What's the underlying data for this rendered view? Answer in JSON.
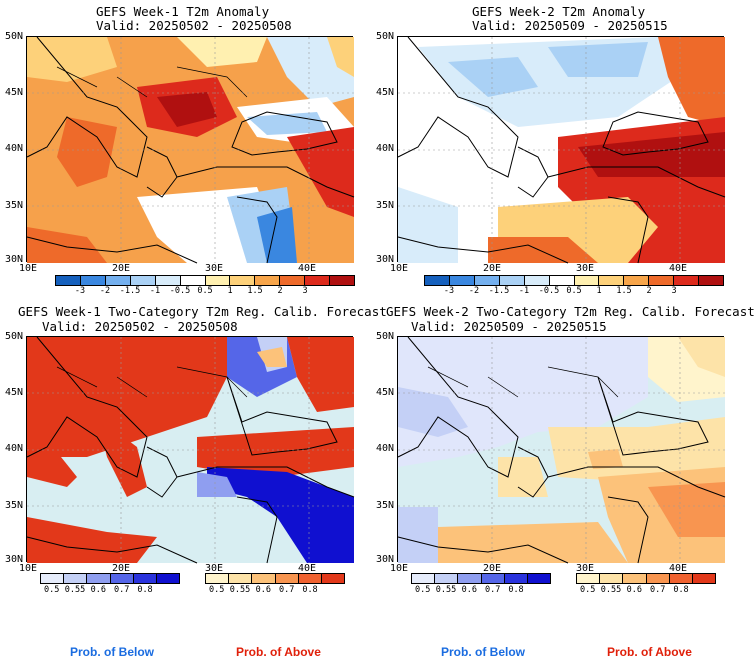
{
  "panels": {
    "tl": {
      "title": "GEFS Week-1 T2m Anomaly",
      "valid": "Valid: 20250502 - 20250508"
    },
    "tr": {
      "title": "GEFS Week-2 T2m Anomaly",
      "valid": "Valid: 20250509 - 20250515"
    },
    "bl": {
      "title": "GEFS Week-1 Two-Category T2m Reg. Calib. Forecast",
      "valid": "Valid: 20250502 - 20250508"
    },
    "br": {
      "title": "GEFS Week-2 Two-Category T2m Reg. Calib. Forecast",
      "valid": "Valid: 20250509 - 20250515"
    }
  },
  "axes": {
    "lat_labels": [
      "50N",
      "45N",
      "40N",
      "35N",
      "30N"
    ],
    "lon_labels": [
      "10E",
      "20E",
      "30E",
      "40E"
    ]
  },
  "anomaly_legend": {
    "labels": [
      "-3",
      "-2",
      "-1.5",
      "-1",
      "-0.5",
      "0.5",
      "1",
      "1.5",
      "2",
      "3"
    ],
    "colors": [
      "#1560bd",
      "#3a87e0",
      "#74b0ef",
      "#aad1f5",
      "#d8ecfa",
      "#ffffff",
      "#fff0b0",
      "#fdd17a",
      "#f7a54a",
      "#ee6a2a",
      "#dd2a1c",
      "#b01010"
    ]
  },
  "prob_legend": {
    "below_labels": [
      "0.5",
      "0.55",
      "0.6",
      "0.7",
      "0.8"
    ],
    "below_colors": [
      "#e6ecfb",
      "#c4d0f6",
      "#8f9ef0",
      "#5566e8",
      "#2a33dd",
      "#1010d0"
    ],
    "above_labels": [
      "0.5",
      "0.55",
      "0.6",
      "0.7",
      "0.8"
    ],
    "above_colors": [
      "#fff4cc",
      "#fde3a8",
      "#fcc27a",
      "#f89550",
      "#f06230",
      "#e2381a"
    ]
  },
  "footer": {
    "below_text": "Prob. of Below",
    "above_text": "Prob. of Above",
    "below_color": "#1a6ce0",
    "above_color": "#e0200a"
  }
}
